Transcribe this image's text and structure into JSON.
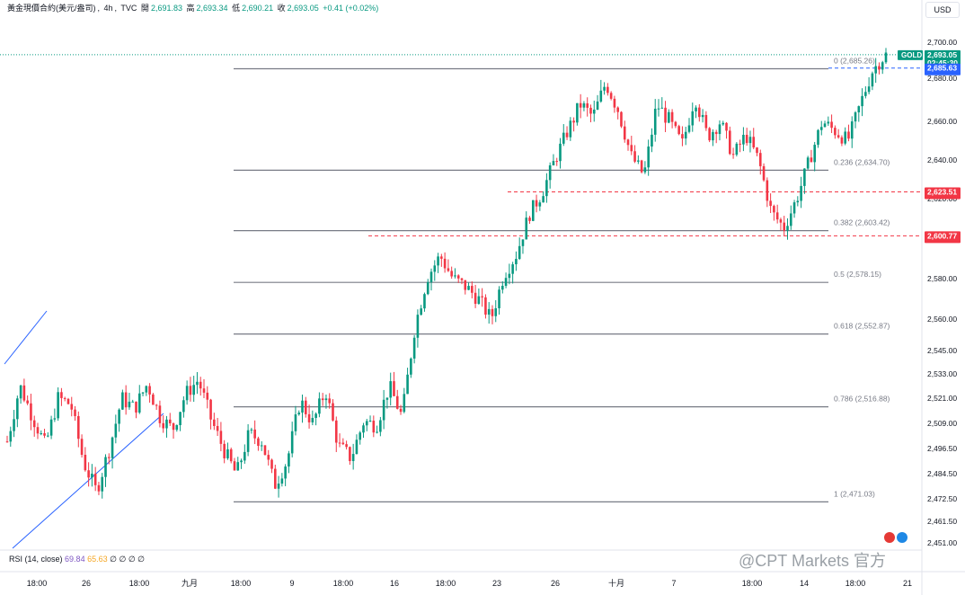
{
  "header": {
    "symbol": "黃金現價合約(美元/盎司)",
    "interval": "4h",
    "source": "TVC",
    "open_label": "開",
    "open": "2,691.83",
    "high_label": "高",
    "high": "2,693.34",
    "low_label": "低",
    "low": "2,690.21",
    "close_label": "收",
    "close": "2,693.05",
    "change": "+0.41 (+0.02%)"
  },
  "currency_button": "USD",
  "price_tag": {
    "ticker": "GOLD",
    "price": "2,693.05",
    "countdown": "02:45:30"
  },
  "level_tags": [
    {
      "value": "2,685.63",
      "color": "#2962ff"
    },
    {
      "value": "2,623.51",
      "color": "#f23645"
    },
    {
      "value": "2,600.77",
      "color": "#f23645"
    }
  ],
  "rsi": {
    "label": "RSI (14, close)",
    "v1": "69.84",
    "v2": "65.63",
    "rest": "∅ ∅ ∅ ∅"
  },
  "watermark": "@CPT Markets 官方",
  "colors": {
    "up": "#089981",
    "down": "#f23645",
    "fib": "#787b86",
    "trend": "#2962ff"
  },
  "chart_data": {
    "type": "candlestick",
    "symbol": "GOLD",
    "interval": "4h",
    "y_ticks": [
      2700,
      2680,
      2660,
      2640,
      2620,
      2600,
      2580,
      2560,
      2545,
      2533,
      2521,
      2509,
      2496.5,
      2484.5,
      2472.5,
      2461.5,
      2451
    ],
    "y_tick_labels": [
      "2,700.00",
      "2,680.00",
      "2,660.00",
      "2,640.00",
      "2,620.00",
      "2,600.00",
      "2,580.00",
      "2,560.00",
      "2,545.00",
      "2,533.00",
      "2,521.00",
      "2,509.00",
      "2,496.50",
      "2,484.50",
      "2,472.50",
      "2,461.50",
      "2,451.00"
    ],
    "x_ticks": [
      "18:00",
      "26",
      "18:00",
      "九月",
      "18:00",
      "9",
      "18:00",
      "16",
      "18:00",
      "23",
      "26",
      "十月",
      "7",
      "18:00",
      "14",
      "18:00",
      "21"
    ],
    "fibonacci": [
      {
        "ratio": "0",
        "price": 2685.26,
        "label": "0 (2,685.26)"
      },
      {
        "ratio": "0.236",
        "price": 2634.7,
        "label": "0.236 (2,634.70)"
      },
      {
        "ratio": "0.382",
        "price": 2603.42,
        "label": "0.382 (2,603.42)"
      },
      {
        "ratio": "0.5",
        "price": 2578.15,
        "label": "0.5 (2,578.15)"
      },
      {
        "ratio": "0.618",
        "price": 2552.87,
        "label": "0.618 (2,552.87)"
      },
      {
        "ratio": "0.786",
        "price": 2516.88,
        "label": "0.786 (2,516.88)"
      },
      {
        "ratio": "1",
        "price": 2471.03,
        "label": "1 (2,471.03)"
      }
    ],
    "horizontal_levels": [
      2685.63,
      2623.51,
      2600.77
    ],
    "last_price": 2693.05,
    "close_path": [
      2500,
      2527,
      2512,
      2498,
      2521,
      2518,
      2490,
      2476,
      2496,
      2521,
      2516,
      2528,
      2512,
      2506,
      2523,
      2530,
      2511,
      2496,
      2484,
      2504,
      2500,
      2479,
      2491,
      2520,
      2509,
      2525,
      2498,
      2492,
      2510,
      2508,
      2527,
      2512,
      2556,
      2581,
      2591,
      2580,
      2576,
      2570,
      2560,
      2582,
      2592,
      2612,
      2623,
      2640,
      2655,
      2668,
      2662,
      2678,
      2665,
      2642,
      2632,
      2668,
      2660,
      2648,
      2672,
      2652,
      2660,
      2642,
      2653,
      2640,
      2613,
      2605,
      2620,
      2640,
      2660,
      2655,
      2650,
      2668,
      2685,
      2693
    ]
  }
}
